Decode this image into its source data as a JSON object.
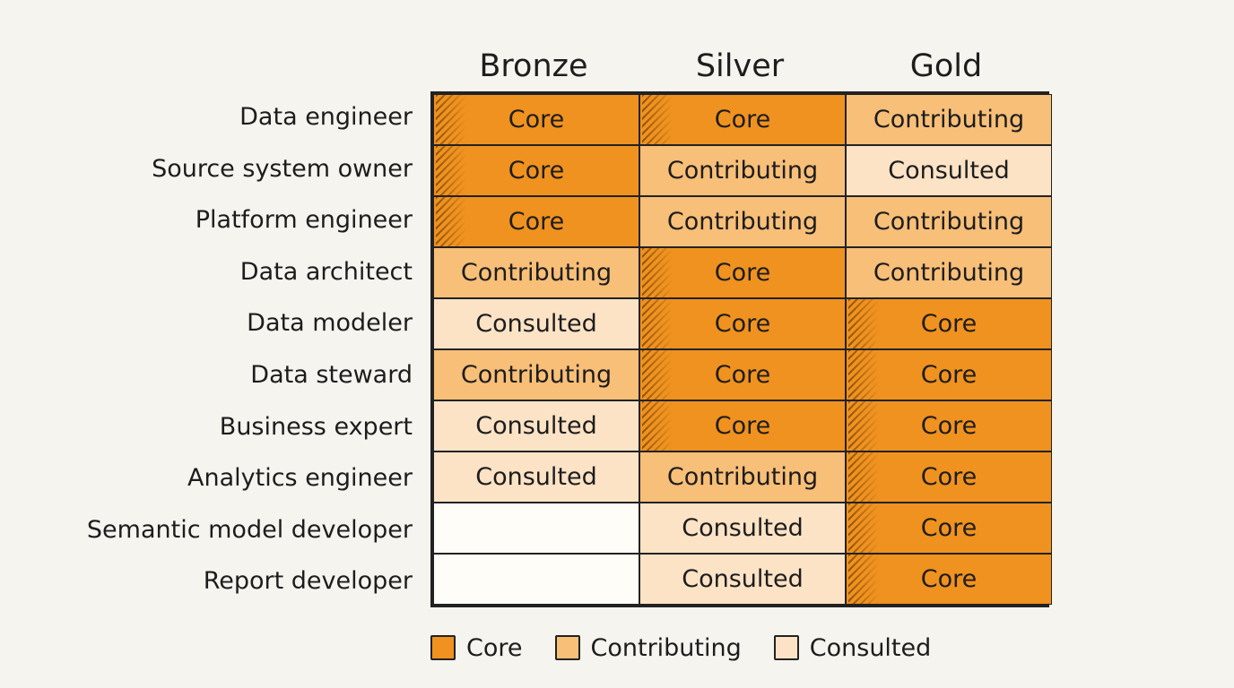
{
  "columns": [
    "Bronze",
    "Silver",
    "Gold"
  ],
  "rows": [
    {
      "role": "Data engineer",
      "cells": [
        "Core",
        "Core",
        "Contributing"
      ]
    },
    {
      "role": "Source system owner",
      "cells": [
        "Core",
        "Contributing",
        "Consulted"
      ]
    },
    {
      "role": "Platform engineer",
      "cells": [
        "Core",
        "Contributing",
        "Contributing"
      ]
    },
    {
      "role": "Data architect",
      "cells": [
        "Contributing",
        "Core",
        "Contributing"
      ]
    },
    {
      "role": "Data modeler",
      "cells": [
        "Consulted",
        "Core",
        "Core"
      ]
    },
    {
      "role": "Data steward",
      "cells": [
        "Contributing",
        "Core",
        "Core"
      ]
    },
    {
      "role": "Business expert",
      "cells": [
        "Consulted",
        "Core",
        "Core"
      ]
    },
    {
      "role": "Analytics engineer",
      "cells": [
        "Consulted",
        "Contributing",
        "Core"
      ]
    },
    {
      "role": "Semantic model developer",
      "cells": [
        "",
        "Consulted",
        "Core"
      ]
    },
    {
      "role": "Report developer",
      "cells": [
        "",
        "Consulted",
        "Core"
      ]
    }
  ],
  "legend": [
    {
      "label": "Core",
      "color": "#f0921f"
    },
    {
      "label": "Contributing",
      "color": "#f8bf78"
    },
    {
      "label": "Consulted",
      "color": "#fce3c6"
    }
  ]
}
